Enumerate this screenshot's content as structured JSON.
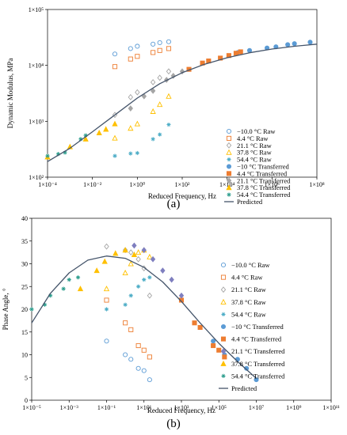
{
  "chart_data": [
    {
      "type": "scatter",
      "panel_label": "(a)",
      "ylabel": "Dynamic Modulus, MPa",
      "xlabel": "Reduced Frequency, Hz",
      "xscale": "log",
      "yscale": "log",
      "xlim": [
        0.0001,
        100000000
      ],
      "ylim": [
        100,
        100000
      ],
      "x_ticks": [
        0.0001,
        0.01,
        1,
        100,
        10000,
        1000000,
        100000000
      ],
      "x_tick_labels": [
        "1×10⁻⁴",
        "1×10⁻²",
        "1×10⁰",
        "1×10²",
        "1×10⁴",
        "1×10⁶",
        "1×10⁸"
      ],
      "y_ticks": [
        100,
        1000,
        10000,
        100000
      ],
      "y_tick_labels": [
        "1×10²",
        "1×10³",
        "1×10⁴",
        "1×10⁵"
      ],
      "grid": false,
      "legend_position": "bottom-right",
      "series": [
        {
          "name": "−10.0 °C Raw",
          "marker": "circle-open",
          "color": "#5b9bd5",
          "x": [
            0.1,
            0.5,
            1,
            5,
            10,
            25
          ],
          "y": [
            16000,
            20000,
            22000,
            24000,
            25500,
            26500
          ]
        },
        {
          "name": "4.4 °C Raw",
          "marker": "square-open",
          "color": "#ed7d31",
          "x": [
            0.1,
            0.5,
            1,
            5,
            10,
            25
          ],
          "y": [
            9500,
            13000,
            14500,
            17000,
            18500,
            20000
          ]
        },
        {
          "name": "21.1 °C Raw",
          "marker": "diamond-open",
          "color": "#a5a5a5",
          "x": [
            0.1,
            0.5,
            1,
            5,
            10,
            25
          ],
          "y": [
            1300,
            2700,
            3300,
            5000,
            6000,
            7800
          ]
        },
        {
          "name": "37.8 °C Raw",
          "marker": "triangle-open",
          "color": "#ffc000",
          "x": [
            0.1,
            0.5,
            1,
            5,
            10,
            25
          ],
          "y": [
            500,
            750,
            900,
            1500,
            2000,
            2800
          ]
        },
        {
          "name": "54.4 °C Raw",
          "marker": "star",
          "color": "#4bacc6",
          "x": [
            0.1,
            0.5,
            1,
            5,
            10,
            25
          ],
          "y": [
            240,
            265,
            270,
            480,
            580,
            870
          ]
        },
        {
          "name": "−10 °C Transferred",
          "marker": "circle",
          "color": "#5b9bd5",
          "x": [
            30000,
            100000,
            600000,
            1500000,
            5000000,
            10000000,
            50000000
          ],
          "y": [
            17000,
            18500,
            20500,
            21500,
            23500,
            24500,
            26000
          ]
        },
        {
          "name": "4.4 °C Transferred",
          "marker": "square",
          "color": "#ed7d31",
          "x": [
            200,
            800,
            1500,
            5000,
            12000,
            25000,
            40000
          ],
          "y": [
            8500,
            11000,
            12000,
            13500,
            15000,
            16500,
            17500
          ]
        },
        {
          "name": "21.1 °C Transferred",
          "marker": "diamond",
          "color": "#a5a5a5",
          "x": [
            0.5,
            2,
            5,
            20,
            40,
            100
          ],
          "y": [
            1700,
            2800,
            3500,
            5500,
            6500,
            7800
          ]
        },
        {
          "name": "37.8 °C Transferred",
          "marker": "triangle",
          "color": "#ffc000",
          "x": [
            0.0001,
            0.001,
            0.005,
            0.02,
            0.04,
            0.1
          ],
          "y": [
            230,
            350,
            480,
            620,
            720,
            900
          ]
        },
        {
          "name": "54.4 °C Transferred",
          "marker": "star",
          "color": "#2e9e8e",
          "x": [
            0.0001,
            0.0003,
            0.0006,
            0.003,
            0.005
          ],
          "y": [
            240,
            260,
            275,
            480,
            560
          ]
        },
        {
          "name": "Predicted",
          "marker": "line",
          "color": "#44546a",
          "x": [
            0.0001,
            0.001,
            0.01,
            0.1,
            1,
            10,
            100,
            1000,
            10000,
            100000,
            1000000,
            10000000,
            100000000
          ],
          "y": [
            190,
            330,
            650,
            1300,
            2600,
            4700,
            7400,
            10500,
            13700,
            16800,
            19600,
            22000,
            24000
          ]
        }
      ]
    },
    {
      "type": "scatter",
      "panel_label": "(b)",
      "ylabel": "Phase Angle, °",
      "xlabel": "Reduced Frequency, Hz",
      "xscale": "log",
      "yscale": "linear",
      "xlim": [
        1e-05,
        100000000000
      ],
      "ylim": [
        0,
        40
      ],
      "x_ticks": [
        1e-05,
        0.001,
        0.1,
        10,
        1000,
        100000,
        10000000,
        1000000000,
        100000000000
      ],
      "x_tick_labels": [
        "1×10⁻⁵",
        "1×10⁻³",
        "1×10⁻¹",
        "1×10¹",
        "1×10³",
        "1×10⁵",
        "1×10⁷",
        "1×10⁹",
        "1×10¹¹"
      ],
      "y_ticks": [
        0,
        5,
        10,
        15,
        20,
        25,
        30,
        35,
        40
      ],
      "y_tick_labels": [
        "0",
        "5",
        "10",
        "15",
        "20",
        "25",
        "30",
        "35",
        "40"
      ],
      "grid": false,
      "legend_position": "right",
      "series": [
        {
          "name": "−10.0 °C Raw",
          "marker": "circle-open",
          "color": "#5b9bd5",
          "x": [
            0.1,
            1,
            2,
            5,
            10,
            20
          ],
          "y": [
            13,
            10,
            9,
            7,
            6.5,
            4.5
          ]
        },
        {
          "name": "4.4 °C Raw",
          "marker": "square-open",
          "color": "#ed7d31",
          "x": [
            0.1,
            1,
            2,
            5,
            10,
            20
          ],
          "y": [
            22,
            17,
            15.5,
            12,
            11,
            9.5
          ]
        },
        {
          "name": "21.1 °C Raw",
          "marker": "diamond-open",
          "color": "#a5a5a5",
          "x": [
            0.1,
            1,
            2,
            5,
            10,
            20
          ],
          "y": [
            33.8,
            33,
            32.5,
            31,
            29,
            23
          ]
        },
        {
          "name": "37.8 °C Raw",
          "marker": "triangle-open",
          "color": "#ffc000",
          "x": [
            0.1,
            1,
            2,
            5,
            10,
            20
          ],
          "y": [
            24.5,
            28,
            30,
            32.5,
            33,
            31.5
          ]
        },
        {
          "name": "54.4 °C Raw",
          "marker": "star",
          "color": "#4bacc6",
          "x": [
            0.1,
            1,
            2,
            5,
            10,
            20
          ],
          "y": [
            20,
            21,
            23,
            25,
            26.5,
            27
          ]
        },
        {
          "name": "−10 °C Transferred",
          "marker": "circle",
          "color": "#5b9bd5",
          "x": [
            50000,
            200000,
            1000000,
            3000000,
            10000000
          ],
          "y": [
            13,
            10,
            9,
            7,
            4.5
          ]
        },
        {
          "name": "4.4 °C Transferred",
          "marker": "square",
          "color": "#ed7d31",
          "x": [
            1000,
            5000,
            10000,
            50000,
            100000,
            200000
          ],
          "y": [
            22,
            17,
            16,
            12,
            11,
            9.5
          ]
        },
        {
          "name": "21.1 °C Transferred",
          "marker": "diamond",
          "color": "#7f7fbf",
          "x": [
            3,
            10,
            30,
            100,
            300,
            1000
          ],
          "y": [
            34,
            33,
            31,
            28.5,
            26.5,
            23
          ]
        },
        {
          "name": "37.8 °C Transferred",
          "marker": "triangle",
          "color": "#ffc000",
          "x": [
            0.004,
            0.03,
            0.08,
            0.3,
            1,
            3
          ],
          "y": [
            24.5,
            28.5,
            30.5,
            32.3,
            33,
            32
          ]
        },
        {
          "name": "54.4 °C Transferred",
          "marker": "star",
          "color": "#2e9e8e",
          "x": [
            1e-05,
            5e-05,
            0.0001,
            0.0005,
            0.001,
            0.003
          ],
          "y": [
            20,
            21,
            23,
            24.5,
            26.5,
            27
          ]
        },
        {
          "name": "Predicted",
          "marker": "line",
          "color": "#44546a",
          "x": [
            1e-05,
            0.0001,
            0.001,
            0.01,
            0.1,
            1,
            10,
            100,
            1000,
            10000,
            100000,
            1000000,
            10000000
          ],
          "y": [
            17,
            23.5,
            28,
            30.8,
            31.7,
            31.2,
            29.2,
            26,
            21.7,
            17,
            12.5,
            8.5,
            4.8
          ]
        }
      ]
    }
  ]
}
